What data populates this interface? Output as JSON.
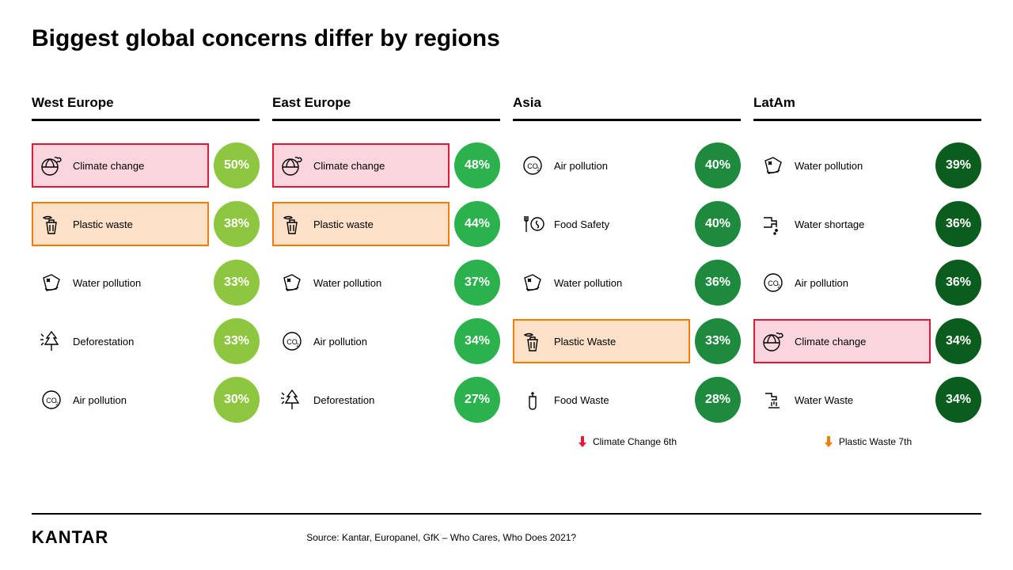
{
  "title": "Biggest global concerns differ by regions",
  "brand": "KANTAR",
  "source": "Source: Kantar, Europanel, GfK – Who Cares, Who Does 2021?",
  "colors": {
    "circle_west": "#8dc63f",
    "circle_east": "#2bb24c",
    "circle_asia": "#1e8a3e",
    "circle_latam": "#0b5d1e",
    "hl_red_bg": "#fbd5dd",
    "hl_red_border": "#e31837",
    "hl_orange_bg": "#fce0c8",
    "hl_orange_border": "#f57c00"
  },
  "columns": [
    {
      "header": "West Europe",
      "circle_color": "#8dc63f",
      "items": [
        {
          "icon": "climate",
          "label": "Climate change",
          "value": "50%",
          "highlight": "red"
        },
        {
          "icon": "plastic",
          "label": "Plastic waste",
          "value": "38%",
          "highlight": "orange"
        },
        {
          "icon": "waterpollution",
          "label": "Water pollution",
          "value": "33%"
        },
        {
          "icon": "deforestation",
          "label": "Deforestation",
          "value": "33%"
        },
        {
          "icon": "airpollution",
          "label": "Air pollution",
          "value": "30%"
        }
      ]
    },
    {
      "header": "East Europe",
      "circle_color": "#2bb24c",
      "items": [
        {
          "icon": "climate",
          "label": "Climate change",
          "value": "48%",
          "highlight": "red"
        },
        {
          "icon": "plastic",
          "label": "Plastic waste",
          "value": "44%",
          "highlight": "orange"
        },
        {
          "icon": "waterpollution",
          "label": "Water pollution",
          "value": "37%"
        },
        {
          "icon": "airpollution",
          "label": "Air pollution",
          "value": "34%"
        },
        {
          "icon": "deforestation",
          "label": "Deforestation",
          "value": "27%"
        }
      ]
    },
    {
      "header": "Asia",
      "circle_color": "#1e8a3e",
      "items": [
        {
          "icon": "airpollution",
          "label": "Air pollution",
          "value": "40%"
        },
        {
          "icon": "foodsafety",
          "label": "Food Safety",
          "value": "40%"
        },
        {
          "icon": "waterpollution",
          "label": "Water pollution",
          "value": "36%"
        },
        {
          "icon": "plastic",
          "label": "Plastic Waste",
          "value": "33%",
          "highlight": "orange"
        },
        {
          "icon": "foodwaste",
          "label": "Food Waste",
          "value": "28%"
        }
      ],
      "footnote": {
        "arrow_color": "#e31837",
        "text": "Climate Change 6th"
      }
    },
    {
      "header": "LatAm",
      "circle_color": "#0b5d1e",
      "items": [
        {
          "icon": "waterpollution",
          "label": "Water pollution",
          "value": "39%"
        },
        {
          "icon": "watershortage",
          "label": "Water shortage",
          "value": "36%"
        },
        {
          "icon": "airpollution",
          "label": "Air pollution",
          "value": "36%"
        },
        {
          "icon": "climate",
          "label": "Climate change",
          "value": "34%",
          "highlight": "red"
        },
        {
          "icon": "waterwaste",
          "label": "Water Waste",
          "value": "34%"
        }
      ],
      "footnote": {
        "arrow_color": "#f57c00",
        "text": "Plastic Waste 7th"
      }
    }
  ]
}
